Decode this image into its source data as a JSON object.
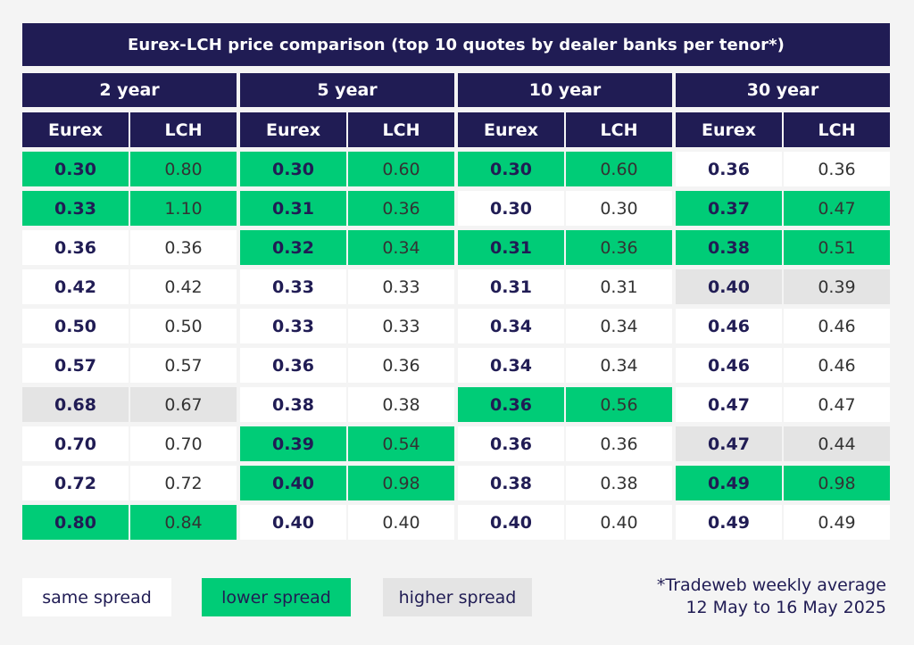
{
  "colors": {
    "header_bg": "#201c54",
    "lower_spread": "#00cc77",
    "higher_spread": "#e4e4e4",
    "same_spread": "#ffffff",
    "text_dark": "#201c54"
  },
  "chart_data": {
    "type": "table",
    "title": "Eurex-LCH price comparison (top 10 quotes by dealer banks per tenor*)",
    "tenors": [
      {
        "label": "2 year",
        "columns": [
          "Eurex",
          "LCH"
        ],
        "eurex": [
          "0.30",
          "0.33",
          "0.36",
          "0.42",
          "0.50",
          "0.57",
          "0.68",
          "0.70",
          "0.72",
          "0.80"
        ],
        "lch": [
          "0.80",
          "1.10",
          "0.36",
          "0.42",
          "0.50",
          "0.57",
          "0.67",
          "0.70",
          "0.72",
          "0.84"
        ],
        "spread": [
          "lower",
          "lower",
          "same",
          "same",
          "same",
          "same",
          "higher",
          "same",
          "same",
          "lower"
        ]
      },
      {
        "label": "5 year",
        "columns": [
          "Eurex",
          "LCH"
        ],
        "eurex": [
          "0.30",
          "0.31",
          "0.32",
          "0.33",
          "0.33",
          "0.36",
          "0.38",
          "0.39",
          "0.40",
          "0.40"
        ],
        "lch": [
          "0.60",
          "0.36",
          "0.34",
          "0.33",
          "0.33",
          "0.36",
          "0.38",
          "0.54",
          "0.98",
          "0.40"
        ],
        "spread": [
          "lower",
          "lower",
          "lower",
          "same",
          "same",
          "same",
          "same",
          "lower",
          "lower",
          "same"
        ]
      },
      {
        "label": "10 year",
        "columns": [
          "Eurex",
          "LCH"
        ],
        "eurex": [
          "0.30",
          "0.30",
          "0.31",
          "0.31",
          "0.34",
          "0.34",
          "0.36",
          "0.36",
          "0.38",
          "0.40"
        ],
        "lch": [
          "0.60",
          "0.30",
          "0.36",
          "0.31",
          "0.34",
          "0.34",
          "0.56",
          "0.36",
          "0.38",
          "0.40"
        ],
        "spread": [
          "lower",
          "same",
          "lower",
          "same",
          "same",
          "same",
          "lower",
          "same",
          "same",
          "same"
        ]
      },
      {
        "label": "30 year",
        "columns": [
          "Eurex",
          "LCH"
        ],
        "eurex": [
          "0.36",
          "0.37",
          "0.38",
          "0.40",
          "0.46",
          "0.46",
          "0.47",
          "0.47",
          "0.49",
          "0.49"
        ],
        "lch": [
          "0.36",
          "0.47",
          "0.51",
          "0.39",
          "0.46",
          "0.46",
          "0.47",
          "0.44",
          "0.98",
          "0.49"
        ],
        "spread": [
          "same",
          "lower",
          "lower",
          "higher",
          "same",
          "same",
          "same",
          "higher",
          "lower",
          "same"
        ]
      }
    ]
  },
  "legend": {
    "same": "same spread",
    "lower": "lower spread",
    "higher": "higher spread"
  },
  "footnote": {
    "line1": "*Tradeweb weekly average",
    "line2": "12 May to 16 May 2025"
  }
}
